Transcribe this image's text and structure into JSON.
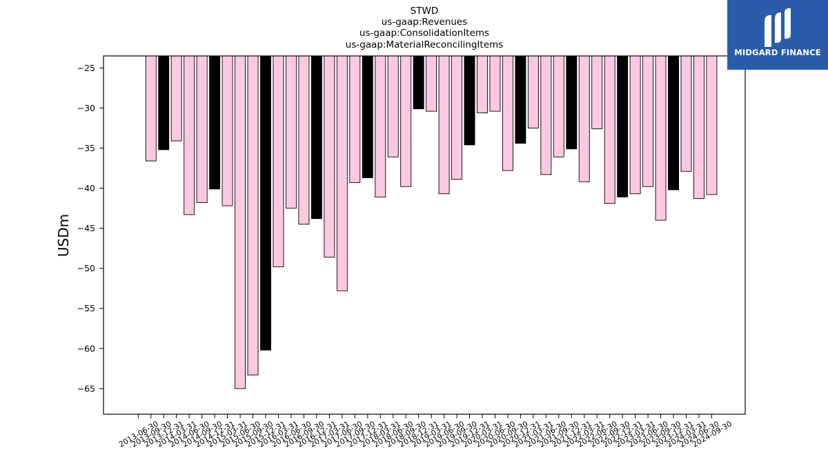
{
  "logo": {
    "brand_text": "MIDGARD FINANCE",
    "bg_color": "#2a5caa"
  },
  "chart_data": {
    "type": "bar",
    "title_lines": [
      "STWD",
      "us-gaap:Revenues",
      "us-gaap:ConsolidationItems",
      "us-gaap:MaterialReconcilingItems"
    ],
    "xlabel": "",
    "ylabel": "USDm",
    "ylim": [
      -68.2,
      -23.5
    ],
    "yticks": [
      -25,
      -30,
      -35,
      -40,
      -45,
      -50,
      -55,
      -60,
      -65
    ],
    "colors": {
      "pink": "#ffc8e1",
      "black": "#000000",
      "edge": "#000000"
    },
    "categories": [
      "2013-06-30",
      "2013-09-30",
      "2013-12-31",
      "2014-03-31",
      "2014-06-30",
      "2014-09-30",
      "2014-12-31",
      "2015-03-31",
      "2015-06-30",
      "2015-09-30",
      "2015-12-31",
      "2016-03-31",
      "2016-06-30",
      "2016-09-30",
      "2016-12-31",
      "2017-03-31",
      "2017-06-30",
      "2017-09-30",
      "2017-12-31",
      "2018-03-31",
      "2018-06-30",
      "2018-09-30",
      "2018-12-31",
      "2019-03-31",
      "2019-06-30",
      "2019-09-30",
      "2019-12-31",
      "2020-03-31",
      "2020-06-30",
      "2020-09-30",
      "2020-12-31",
      "2021-03-31",
      "2021-06-30",
      "2021-09-30",
      "2021-12-31",
      "2022-03-31",
      "2022-06-30",
      "2022-09-30",
      "2022-12-31",
      "2023-03-31",
      "2023-06-30",
      "2023-09-30",
      "2023-12-31",
      "2024-03-31",
      "2024-06-30",
      "2024-09-30"
    ],
    "values": [
      null,
      -36.6,
      -35.2,
      -34.1,
      -43.3,
      -41.8,
      -40.1,
      -42.2,
      -65.0,
      -63.3,
      -60.2,
      -49.8,
      -42.5,
      -44.5,
      -43.8,
      -48.6,
      -52.8,
      -39.3,
      -38.7,
      -41.1,
      -36.1,
      -39.8,
      -30.1,
      -30.4,
      -40.7,
      -38.9,
      -34.6,
      -30.6,
      -30.4,
      -37.8,
      -34.4,
      -32.5,
      -38.3,
      -36.1,
      -35.1,
      -39.2,
      -32.6,
      -41.9,
      -41.1,
      -40.7,
      -39.8,
      -44.0,
      -40.2,
      -37.9,
      -41.3,
      -40.8
    ],
    "bar_colors": [
      null,
      "pink",
      "black",
      "pink",
      "pink",
      "pink",
      "black",
      "pink",
      "pink",
      "pink",
      "black",
      "pink",
      "pink",
      "pink",
      "black",
      "pink",
      "pink",
      "pink",
      "black",
      "pink",
      "pink",
      "pink",
      "black",
      "pink",
      "pink",
      "pink",
      "black",
      "pink",
      "pink",
      "pink",
      "black",
      "pink",
      "pink",
      "pink",
      "black",
      "pink",
      "pink",
      "pink",
      "black",
      "pink",
      "pink",
      "pink",
      "black",
      "pink",
      "pink",
      "pink"
    ]
  }
}
